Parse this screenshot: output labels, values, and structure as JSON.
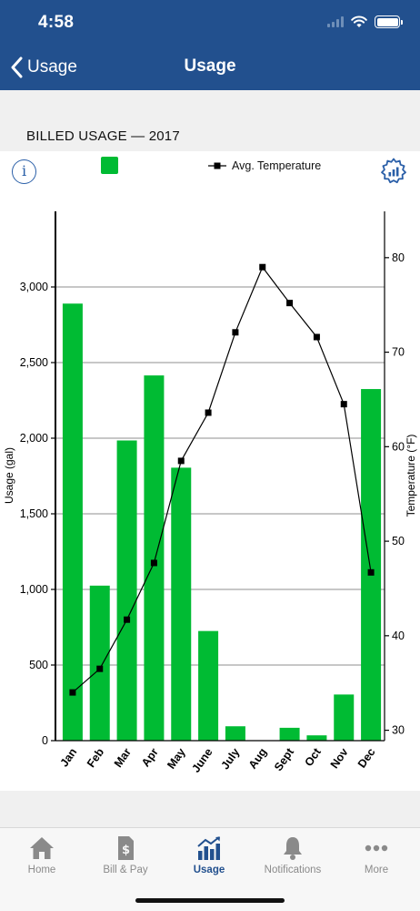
{
  "status": {
    "time": "4:58"
  },
  "nav": {
    "back_label": "Usage",
    "title": "Usage"
  },
  "section": {
    "title": "BILLED USAGE — 2017"
  },
  "legend": {
    "temperature_label": "Avg. Temperature",
    "usage_color": "#00bb33"
  },
  "icons": {
    "info": "info-icon",
    "settings": "chart-settings-gear-icon"
  },
  "chart_data": {
    "type": "bar",
    "categories": [
      "Jan",
      "Feb",
      "Mar",
      "Apr",
      "May",
      "June",
      "July",
      "Aug",
      "Sept",
      "Oct",
      "Nov",
      "Dec"
    ],
    "series": [
      {
        "type": "bar",
        "axis": "left",
        "color": "#00bb33",
        "values": [
          2890,
          1025,
          1985,
          2415,
          1805,
          725,
          95,
          0,
          85,
          35,
          305,
          2325
        ]
      },
      {
        "name": "Avg. Temperature",
        "type": "line",
        "axis": "right",
        "color": "#000000",
        "values": [
          34,
          36.5,
          41.7,
          47.7,
          58.5,
          63.6,
          72.1,
          79.0,
          75.2,
          71.6,
          64.5,
          46.7
        ]
      }
    ],
    "ylabel": "Usage (gal)",
    "ylabel_right": "Temperature (°F)",
    "ylim": [
      0,
      3500
    ],
    "ylim_right": [
      28.9,
      84.9
    ],
    "yticks": [
      0,
      500,
      1000,
      1500,
      2000,
      2500,
      3000
    ],
    "yticks_right": [
      30,
      40,
      50,
      60,
      70,
      80
    ],
    "yticklabels": [
      "0",
      "500",
      "1,000",
      "1,500",
      "2,000",
      "2,500",
      "3,000"
    ],
    "yticklabels_right": [
      "30",
      "40",
      "50",
      "60",
      "70",
      "80"
    ],
    "grid": true
  },
  "tabs": [
    {
      "label": "Home",
      "icon": "home-icon",
      "active": false
    },
    {
      "label": "Bill & Pay",
      "icon": "bill-icon",
      "active": false
    },
    {
      "label": "Usage",
      "icon": "usage-icon",
      "active": true
    },
    {
      "label": "Notifications",
      "icon": "bell-icon",
      "active": false
    },
    {
      "label": "More",
      "icon": "more-icon",
      "active": false
    }
  ]
}
